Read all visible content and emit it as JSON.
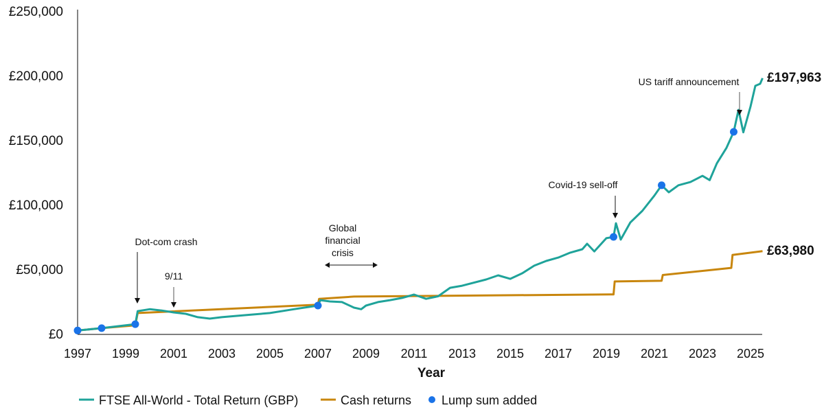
{
  "chart_data": {
    "type": "line",
    "title": "",
    "xlabel": "Year",
    "ylabel": "",
    "xlim": [
      1997,
      2025.6
    ],
    "ylim": [
      0,
      250000
    ],
    "grid": false,
    "legend_position": "bottom-left",
    "x_ticks": [
      "1997",
      "1999",
      "2001",
      "2003",
      "2005",
      "2007",
      "2009",
      "2011",
      "2013",
      "2015",
      "2017",
      "2019",
      "2021",
      "2023",
      "2025"
    ],
    "y_ticks": [
      "£0",
      "£50,000",
      "£100,000",
      "£150,000",
      "£200,000",
      "£250,000"
    ],
    "series": [
      {
        "name": "FTSE All-World - Total Return (GBP)",
        "color": "#1fa39a",
        "end_label": "£197,963",
        "x": [
          1997.0,
          1998.0,
          1999.4,
          1999.5,
          2000.0,
          2000.5,
          2001.0,
          2001.5,
          2002.0,
          2002.5,
          2003.0,
          2004.0,
          2005.0,
          2006.0,
          2007.0,
          2007.1,
          2007.5,
          2008.0,
          2008.5,
          2008.8,
          2009.0,
          2009.5,
          2010.0,
          2010.5,
          2011.0,
          2011.5,
          2012.0,
          2012.5,
          2013.0,
          2014.0,
          2014.5,
          2015.0,
          2015.5,
          2016.0,
          2016.5,
          2017.0,
          2017.5,
          2018.0,
          2018.2,
          2018.5,
          2019.0,
          2019.3,
          2019.4,
          2019.6,
          2020.0,
          2020.5,
          2021.0,
          2021.3,
          2021.6,
          2022.0,
          2022.5,
          2023.0,
          2023.3,
          2023.6,
          2024.0,
          2024.3,
          2024.5,
          2024.7,
          2025.0,
          2025.2,
          2025.4,
          2025.5
        ],
        "y": [
          2500,
          4300,
          7400,
          17500,
          19000,
          18000,
          16500,
          15400,
          12800,
          11700,
          12800,
          14400,
          16000,
          19000,
          21800,
          26000,
          25000,
          24500,
          20200,
          19000,
          21800,
          24500,
          26000,
          27700,
          30300,
          27000,
          29000,
          35600,
          37200,
          42000,
          45200,
          42500,
          46800,
          52700,
          56400,
          59000,
          62800,
          65400,
          69700,
          63800,
          74000,
          75000,
          85600,
          72900,
          86200,
          95200,
          107000,
          115000,
          109600,
          115000,
          117500,
          122300,
          119000,
          132000,
          144000,
          156400,
          173400,
          156000,
          176000,
          192000,
          193600,
          197963
        ]
      },
      {
        "name": "Cash returns",
        "color": "#c8860d",
        "end_label": "£63,980",
        "x": [
          1997.0,
          1998.0,
          1999.4,
          1999.5,
          2007.0,
          2007.05,
          2008.5,
          2019.3,
          2019.35,
          2021.3,
          2021.35,
          2024.2,
          2024.25,
          2025.5
        ],
        "y": [
          2500,
          4300,
          6500,
          16000,
          22500,
          27000,
          28800,
          30500,
          40500,
          41000,
          45500,
          51000,
          61000,
          63980
        ]
      }
    ],
    "markers": {
      "name": "Lump sum added",
      "color": "#1a73e8",
      "x": [
        1997.0,
        1998.0,
        1999.4,
        2007.0,
        2019.3,
        2021.3,
        2024.3
      ],
      "y": [
        2500,
        4300,
        7400,
        21800,
        75000,
        115000,
        156400
      ]
    },
    "annotations": [
      {
        "label": "Dot-com crash",
        "x": 1999.5
      },
      {
        "label": "9/11",
        "x": 2001.0
      },
      {
        "label": "Global financial crisis",
        "lines": [
          "Global",
          "financial",
          "crisis"
        ],
        "x_range": [
          2007.0,
          2009.2
        ]
      },
      {
        "label": "Covid-19 sell-off",
        "x": 2020.0
      },
      {
        "label": "US tariff announcement",
        "x": 2025.0
      }
    ]
  }
}
